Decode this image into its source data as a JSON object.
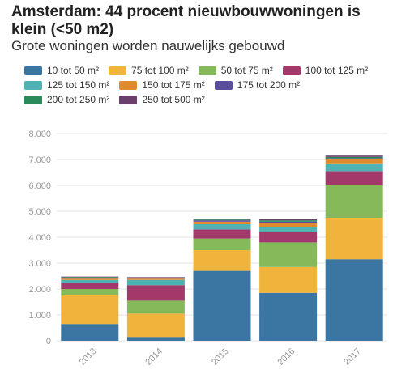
{
  "title": "Amsterdam: 44 procent nieuwbouwwoningen is klein (<50 m2)",
  "subtitle": "Grote woningen worden nauwelijks gebouwd",
  "chart_data": {
    "type": "bar",
    "stacked": true,
    "categories": [
      "2013",
      "2014",
      "2015",
      "2016",
      "2017"
    ],
    "ylim": [
      0,
      8000
    ],
    "yticks": [
      "0",
      "1.000",
      "2.000",
      "3.000",
      "4.000",
      "5.000",
      "6.000",
      "7.000",
      "8.000"
    ],
    "grid": true,
    "legend_position": "top",
    "series": [
      {
        "name": "10 tot 50 m²",
        "color": "#3a76a1",
        "values": [
          650,
          150,
          2700,
          1850,
          3150
        ]
      },
      {
        "name": "75 tot 100 m²",
        "color": "#f0b43c",
        "values": [
          1100,
          900,
          800,
          1000,
          1600
        ]
      },
      {
        "name": "50 tot 75 m²",
        "color": "#86b95a",
        "values": [
          250,
          500,
          450,
          950,
          1250
        ]
      },
      {
        "name": "100 tot 125 m²",
        "color": "#a2396a",
        "values": [
          250,
          600,
          350,
          400,
          550
        ]
      },
      {
        "name": "125 tot 150 m²",
        "color": "#4fb3b3",
        "values": [
          100,
          200,
          200,
          200,
          300
        ]
      },
      {
        "name": "150 tot 175 m²",
        "color": "#e08a2e",
        "values": [
          50,
          50,
          100,
          150,
          150
        ]
      },
      {
        "name": "175 tot 200 m²",
        "color": "#5a4d9c",
        "values": [
          30,
          20,
          50,
          50,
          50
        ]
      },
      {
        "name": "200 tot 250 m²",
        "color": "#2a8a5a",
        "values": [
          30,
          20,
          30,
          50,
          50
        ]
      },
      {
        "name": "250 tot 500 m²",
        "color": "#6b3f6b",
        "values": [
          20,
          20,
          30,
          40,
          50
        ]
      }
    ]
  }
}
